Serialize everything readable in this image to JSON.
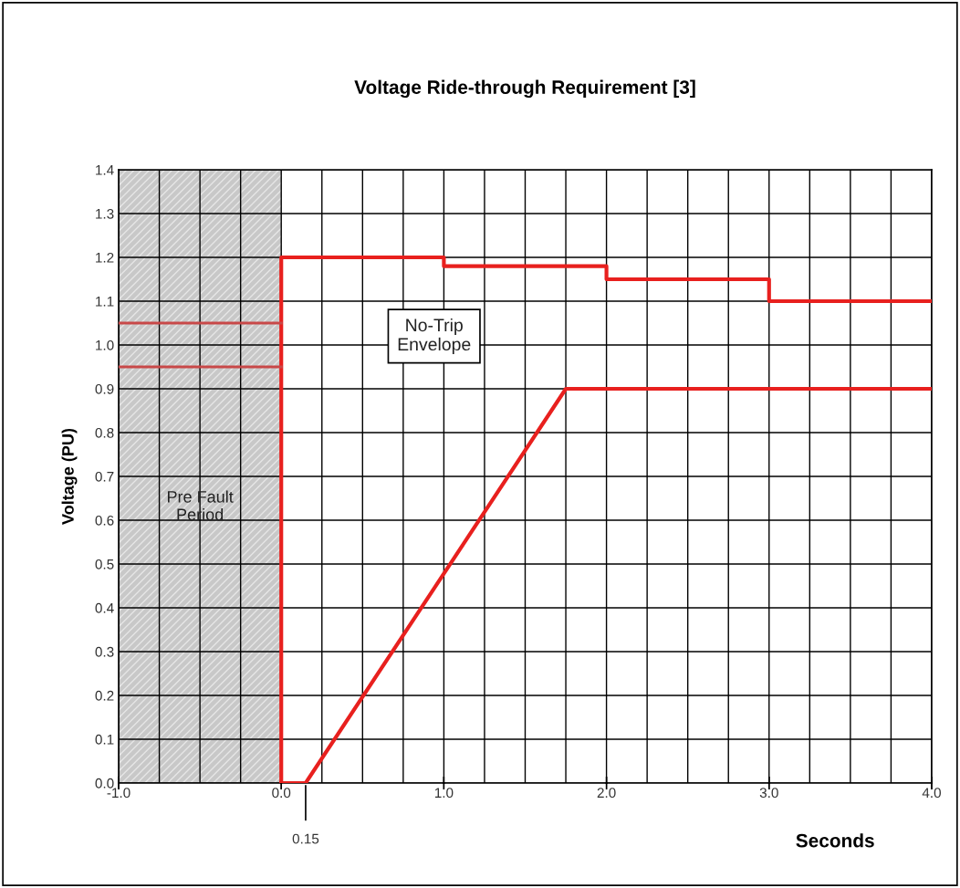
{
  "chart_data": {
    "type": "line",
    "title": "Voltage Ride-through Requirement [3]",
    "xlabel": "Seconds",
    "ylabel": "Voltage (PU)",
    "xlim": [
      -1,
      4
    ],
    "ylim": [
      0,
      1.4
    ],
    "xticks": [
      {
        "value": -1,
        "label": "-1.0"
      },
      {
        "value": -0.75,
        "label": null
      },
      {
        "value": -0.5,
        "label": null
      },
      {
        "value": -0.25,
        "label": null
      },
      {
        "value": 0,
        "label": "0.0"
      },
      {
        "value": 0.25,
        "label": null
      },
      {
        "value": 0.5,
        "label": null
      },
      {
        "value": 0.75,
        "label": null
      },
      {
        "value": 1,
        "label": "1.0"
      },
      {
        "value": 1.25,
        "label": null
      },
      {
        "value": 1.5,
        "label": null
      },
      {
        "value": 1.75,
        "label": null
      },
      {
        "value": 2,
        "label": "2.0"
      },
      {
        "value": 2.25,
        "label": null
      },
      {
        "value": 2.5,
        "label": null
      },
      {
        "value": 2.75,
        "label": null
      },
      {
        "value": 3,
        "label": "3.0"
      },
      {
        "value": 3.25,
        "label": null
      },
      {
        "value": 3.5,
        "label": null
      },
      {
        "value": 3.75,
        "label": null
      },
      {
        "value": 4,
        "label": "4.0"
      }
    ],
    "yticks": [
      {
        "value": 0,
        "label": "0.0"
      },
      {
        "value": 0.1,
        "label": "0.1"
      },
      {
        "value": 0.2,
        "label": "0.2"
      },
      {
        "value": 0.3,
        "label": "0.3"
      },
      {
        "value": 0.4,
        "label": "0.4"
      },
      {
        "value": 0.5,
        "label": "0.5"
      },
      {
        "value": 0.6,
        "label": "0.6"
      },
      {
        "value": 0.7,
        "label": "0.7"
      },
      {
        "value": 0.8,
        "label": "0.8"
      },
      {
        "value": 0.9,
        "label": "0.9"
      },
      {
        "value": 1,
        "label": "1.0"
      },
      {
        "value": 1.1,
        "label": "1.1"
      },
      {
        "value": 1.2,
        "label": "1.2"
      },
      {
        "value": 1.3,
        "label": "1.3"
      },
      {
        "value": 1.4,
        "label": "1.4"
      }
    ],
    "grid": true,
    "series": [
      {
        "color": "#e8201e",
        "x": [
          0,
          0,
          1,
          1,
          2,
          2,
          3,
          3,
          4
        ],
        "values": [
          0,
          1.2,
          1.2,
          1.18,
          1.18,
          1.15,
          1.15,
          1.1,
          1.1
        ]
      },
      {
        "color": "#e8201e",
        "x": [
          0,
          0.15,
          1.75,
          4
        ],
        "values": [
          0,
          0,
          0.9,
          0.9
        ]
      },
      {
        "color": "#c84848",
        "x": [
          -1,
          0
        ],
        "values": [
          1.05,
          1.05
        ]
      },
      {
        "color": "#c84848",
        "x": [
          -1,
          0
        ],
        "values": [
          0.95,
          0.95
        ]
      }
    ],
    "bands": [
      {
        "axis": "x",
        "from": -1,
        "to": 0,
        "label": "Pre Fault\nPeriod",
        "color": "#c8c8c8"
      }
    ],
    "annotations": [
      "No-Trip\nEnvelope",
      {
        "text": "0.15",
        "x": 0.15
      }
    ]
  }
}
